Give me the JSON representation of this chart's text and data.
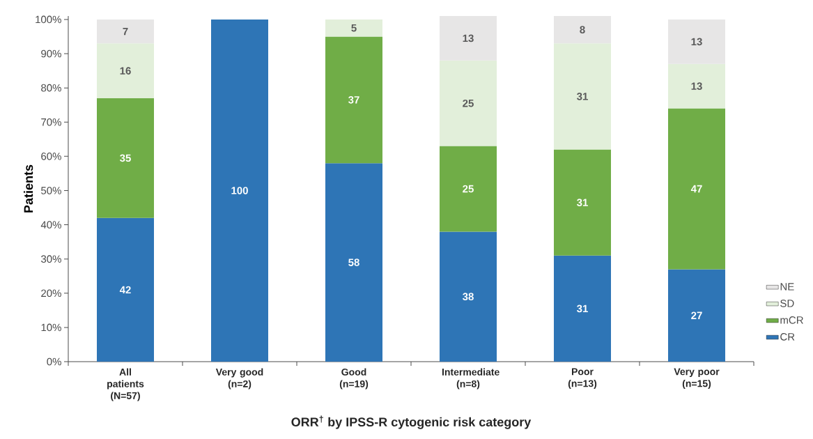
{
  "chart_data": {
    "type": "bar",
    "stacked": true,
    "categories": [
      "All patients (N=57)",
      "Very good (n=2)",
      "Good (n=19)",
      "Intermediate (n=8)",
      "Poor (n=13)",
      "Very poor (n=15)"
    ],
    "series": [
      {
        "name": "CR",
        "color": "#2e75b6",
        "values": [
          42,
          100,
          58,
          38,
          31,
          27
        ]
      },
      {
        "name": "mCR",
        "color": "#70ad47",
        "values": [
          35,
          null,
          37,
          25,
          31,
          47
        ]
      },
      {
        "name": "SD",
        "color": "#e2efda",
        "values": [
          16,
          null,
          5,
          25,
          31,
          13
        ]
      },
      {
        "name": "NE",
        "color": "#e7e6e6",
        "values": [
          7,
          null,
          null,
          13,
          8,
          13
        ]
      }
    ],
    "ylabel": "Patients",
    "xlabel": "ORR$^{†}$ by IPSS-R cytogenic risk category",
    "ylim": [
      0,
      101
    ],
    "yticks": [
      {
        "value": 0,
        "label": "0%"
      },
      {
        "value": 10,
        "label": "10%"
      },
      {
        "value": 20,
        "label": "20%"
      },
      {
        "value": 30,
        "label": "30%"
      },
      {
        "value": 40,
        "label": "40%"
      },
      {
        "value": 50,
        "label": "50%"
      },
      {
        "value": 60,
        "label": "60%"
      },
      {
        "value": 70,
        "label": "70%"
      },
      {
        "value": 80,
        "label": "80%"
      },
      {
        "value": 90,
        "label": "90%"
      },
      {
        "value": 100,
        "label": "100%"
      }
    ],
    "data_labels": true,
    "legend": "right",
    "grid": false
  }
}
